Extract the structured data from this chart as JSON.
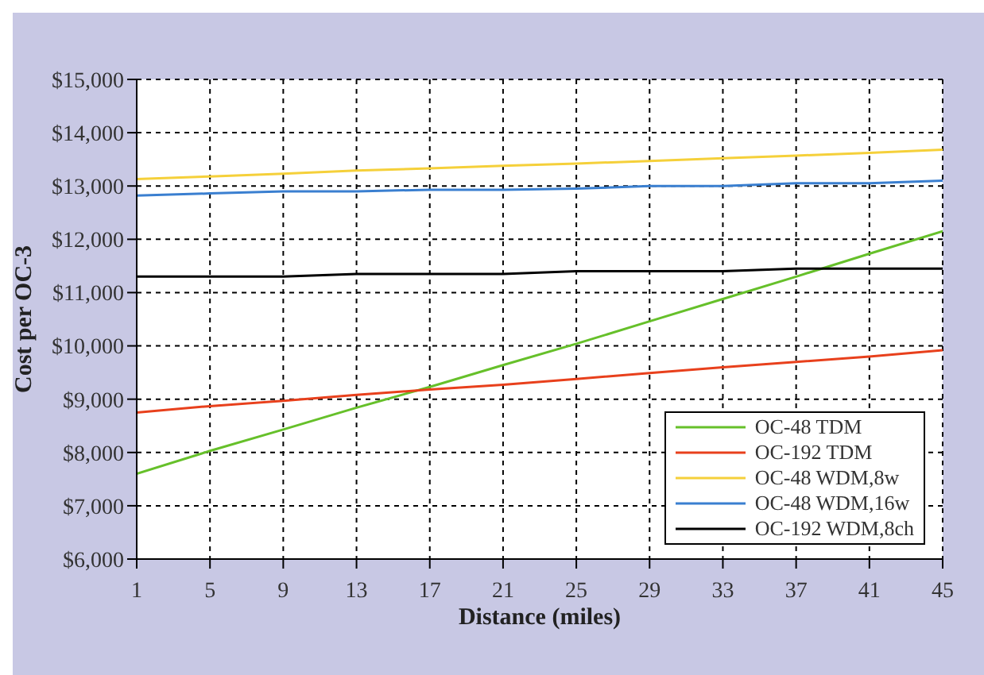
{
  "chart_data": {
    "type": "line",
    "xlabel": "Distance (miles)",
    "ylabel": "Cost per OC-3",
    "x": [
      1,
      5,
      9,
      13,
      17,
      21,
      25,
      29,
      33,
      37,
      41,
      45
    ],
    "series": [
      {
        "name": "OC-48 TDM",
        "color": "#66c02a",
        "values": [
          7600,
          8030,
          8430,
          8840,
          9230,
          9640,
          10040,
          10460,
          10880,
          11300,
          11730,
          12150
        ]
      },
      {
        "name": "OC-192 TDM",
        "color": "#e8401c",
        "values": [
          8750,
          8870,
          8970,
          9080,
          9180,
          9270,
          9380,
          9490,
          9600,
          9700,
          9800,
          9920
        ]
      },
      {
        "name": "OC-48 WDM,8w",
        "color": "#f5d03a",
        "values": [
          13130,
          13180,
          13230,
          13290,
          13330,
          13380,
          13420,
          13470,
          13520,
          13570,
          13620,
          13680
        ]
      },
      {
        "name": "OC-48 WDM,16w",
        "color": "#3a7fd0",
        "values": [
          12820,
          12860,
          12900,
          12900,
          12930,
          12930,
          12950,
          13000,
          13000,
          13050,
          13050,
          13100
        ]
      },
      {
        "name": "OC-192 WDM,8ch",
        "color": "#000000",
        "values": [
          11300,
          11300,
          11300,
          11350,
          11350,
          11350,
          11400,
          11400,
          11400,
          11450,
          11450,
          11450
        ]
      }
    ],
    "xlim": [
      1,
      45
    ],
    "xticks": [
      1,
      5,
      9,
      13,
      17,
      21,
      25,
      29,
      33,
      37,
      41,
      45
    ],
    "ylim": [
      6000,
      15000
    ],
    "yticks": [
      {
        "value": 6000,
        "label": "$6,000"
      },
      {
        "value": 7000,
        "label": "$7,000"
      },
      {
        "value": 8000,
        "label": "$8,000"
      },
      {
        "value": 9000,
        "label": "$9,000"
      },
      {
        "value": 10000,
        "label": "$10,000"
      },
      {
        "value": 11000,
        "label": "$11,000"
      },
      {
        "value": 12000,
        "label": "$12,000"
      },
      {
        "value": 13000,
        "label": "$13,000"
      },
      {
        "value": 14000,
        "label": "$14,000"
      },
      {
        "value": 15000,
        "label": "$15,000"
      }
    ],
    "grid": true,
    "legend": "bottom right",
    "marker": "none",
    "line_style": "solid"
  }
}
